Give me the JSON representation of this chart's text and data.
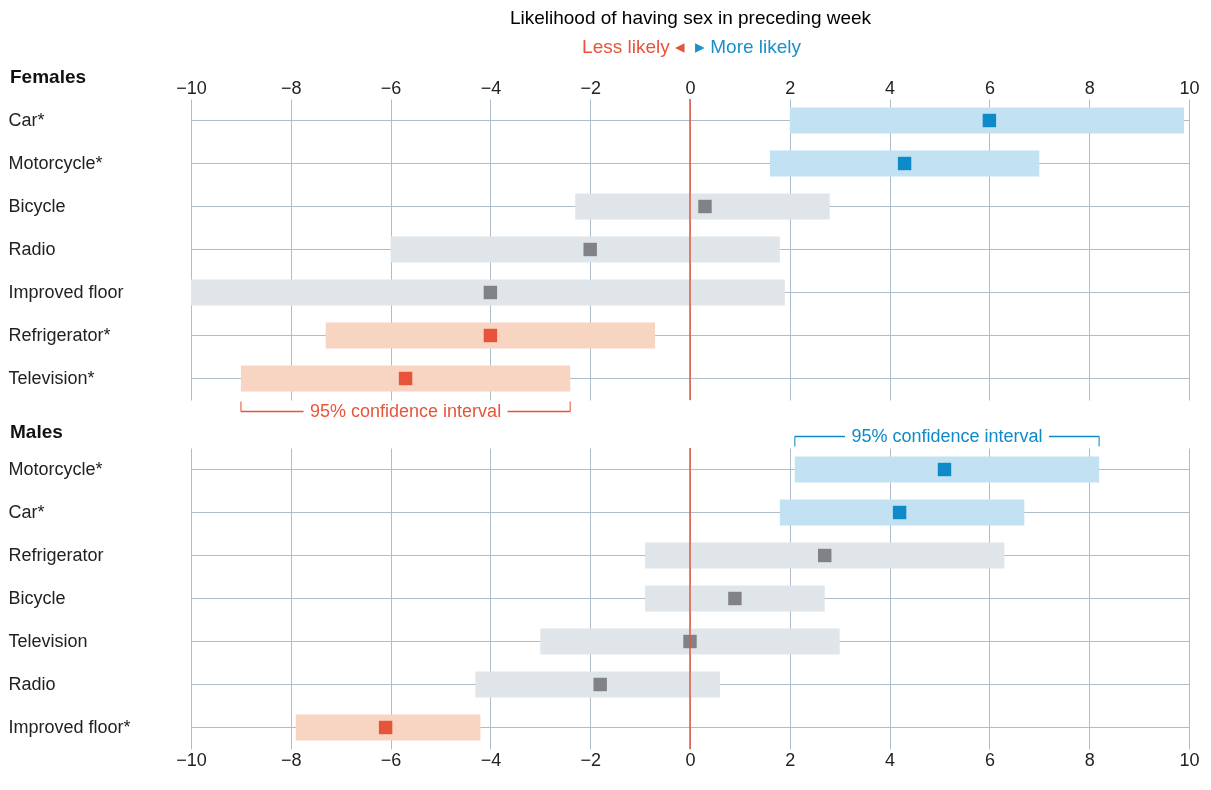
{
  "chart_data": [
    {
      "type": "bar",
      "orientation": "horizontal",
      "title": "Females",
      "xlabel": "Likelihood of having sex in preceding week",
      "categories": [
        "Car*",
        "Motorcycle*",
        "Bicycle",
        "Radio",
        "Improved floor",
        "Refrigerator*",
        "Television*"
      ],
      "xlim": [
        -10,
        10
      ],
      "xticks": [
        -10,
        -8,
        -6,
        -4,
        -2,
        0,
        2,
        4,
        6,
        8,
        10
      ],
      "grid": true,
      "series": [
        {
          "type": "bar",
          "base": [
            2.0,
            1.6,
            -2.3,
            -6.0,
            -10.0,
            -7.3,
            -9.0
          ],
          "values": [
            7.9,
            5.4,
            5.1,
            7.8,
            11.9,
            6.6,
            6.6
          ],
          "colors": [
            "#c2e2f4",
            "#c2e2f4",
            "#e0e5ea",
            "#e0e5ea",
            "#e0e5ea",
            "#f8d4c2",
            "#f8d4c2"
          ]
        },
        {
          "type": "scatter",
          "marker": "square",
          "values": [
            6.0,
            4.3,
            0.3,
            -2.0,
            -4.0,
            -4.0,
            -5.7
          ],
          "colors": [
            "#0e8ac8",
            "#0e8ac8",
            "#808285",
            "#808285",
            "#808285",
            "#e6553a",
            "#e6553a"
          ]
        }
      ],
      "ref_lines": [
        {
          "axis": "x",
          "value": 0,
          "color": "#e6553a"
        }
      ],
      "annotations": [
        "Less likely ◂",
        "▸ More likely",
        {
          "text": "95% confidence interval",
          "x": -5.7,
          "y": "Television*"
        }
      ]
    },
    {
      "type": "bar",
      "orientation": "horizontal",
      "title": "Males",
      "categories": [
        "Motorcycle*",
        "Car*",
        "Refrigerator",
        "Bicycle",
        "Television",
        "Radio",
        "Improved floor*"
      ],
      "xlim": [
        -10,
        10
      ],
      "xticks": [
        -10,
        -8,
        -6,
        -4,
        -2,
        0,
        2,
        4,
        6,
        8,
        10
      ],
      "grid": true,
      "series": [
        {
          "type": "bar",
          "base": [
            2.1,
            1.8,
            -0.9,
            -0.9,
            -3.0,
            -4.3,
            -7.9
          ],
          "values": [
            6.1,
            4.9,
            7.2,
            3.6,
            6.0,
            4.9,
            3.7
          ],
          "colors": [
            "#c2e2f4",
            "#c2e2f4",
            "#e0e5ea",
            "#e0e5ea",
            "#e0e5ea",
            "#e0e5ea",
            "#f8d4c2"
          ]
        },
        {
          "type": "scatter",
          "marker": "square",
          "values": [
            5.1,
            4.2,
            2.7,
            0.9,
            0.0,
            -1.8,
            -6.1
          ],
          "colors": [
            "#0e8ac8",
            "#0e8ac8",
            "#808285",
            "#808285",
            "#808285",
            "#808285",
            "#e6553a"
          ]
        }
      ],
      "ref_lines": [
        {
          "axis": "x",
          "value": 0,
          "color": "#e6553a"
        }
      ],
      "annotations": [
        {
          "text": "95% confidence interval",
          "x": 5.15,
          "y": "Motorcycle*"
        }
      ]
    }
  ]
}
